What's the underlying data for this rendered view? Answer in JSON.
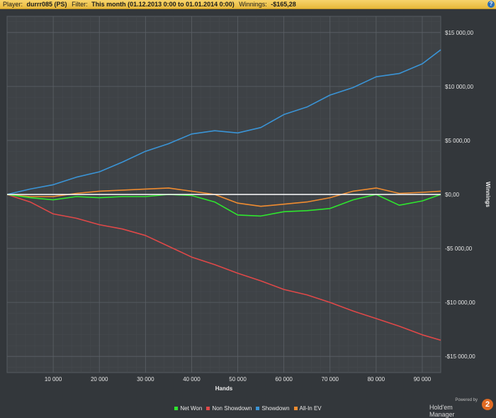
{
  "header": {
    "player_label": "Player:",
    "player_value": "durrr085 (PS)",
    "filter_label": "Filter:",
    "filter_value": "This month (01.12.2013 0:00 to 01.01.2014 0:00)",
    "winnings_label": "Winnings:",
    "winnings_value": "-$165,28",
    "help_glyph": "?"
  },
  "brand": {
    "powered_by": "Powered by",
    "name": "Hold'em Manager",
    "logo_glyph": "2"
  },
  "chart_data": {
    "type": "line",
    "xlabel": "Hands",
    "ylabel": "Winnings",
    "xlim": [
      0,
      94000
    ],
    "ylim": [
      -16500,
      16500
    ],
    "x_ticks": [
      10000,
      20000,
      30000,
      40000,
      50000,
      60000,
      70000,
      80000,
      90000
    ],
    "x_tick_labels": [
      "10 000",
      "20 000",
      "30 000",
      "40 000",
      "50 000",
      "60 000",
      "70 000",
      "80 000",
      "90 000"
    ],
    "y_ticks": [
      15000,
      10000,
      5000,
      0,
      -5000,
      -10000,
      -15000
    ],
    "y_tick_labels": [
      "$15 000,00",
      "$10 000,00",
      "$5 000,00",
      "$0,00",
      "-$5 000,00",
      "-$10 000,00",
      "-$15 000,00"
    ],
    "grid": true,
    "legend_position": "bottom",
    "x": [
      0,
      5000,
      10000,
      15000,
      20000,
      25000,
      30000,
      35000,
      40000,
      45000,
      50000,
      55000,
      60000,
      65000,
      70000,
      75000,
      80000,
      85000,
      90000,
      94000
    ],
    "series": [
      {
        "name": "Net Won",
        "color": "#2ee62e",
        "values": [
          0,
          -300,
          -500,
          -200,
          -300,
          -200,
          -200,
          0,
          -100,
          -700,
          -1900,
          -2000,
          -1600,
          -1500,
          -1300,
          -500,
          0,
          -1000,
          -600,
          0
        ]
      },
      {
        "name": "Non Showdown",
        "color": "#e04848",
        "values": [
          0,
          -700,
          -1800,
          -2200,
          -2800,
          -3200,
          -3800,
          -4800,
          -5800,
          -6500,
          -7300,
          -8000,
          -8800,
          -9300,
          -10000,
          -10800,
          -11500,
          -12200,
          -13000,
          -13500
        ]
      },
      {
        "name": "Showdown",
        "color": "#3a94d6",
        "values": [
          0,
          500,
          900,
          1600,
          2100,
          3000,
          4000,
          4700,
          5600,
          5900,
          5700,
          6200,
          7400,
          8100,
          9200,
          9900,
          10900,
          11200,
          12100,
          13400
        ]
      },
      {
        "name": "All-In EV",
        "color": "#f08c30",
        "values": [
          0,
          -200,
          -200,
          100,
          300,
          400,
          500,
          600,
          300,
          0,
          -800,
          -1100,
          -900,
          -700,
          -300,
          300,
          600,
          100,
          200,
          300
        ]
      }
    ]
  }
}
